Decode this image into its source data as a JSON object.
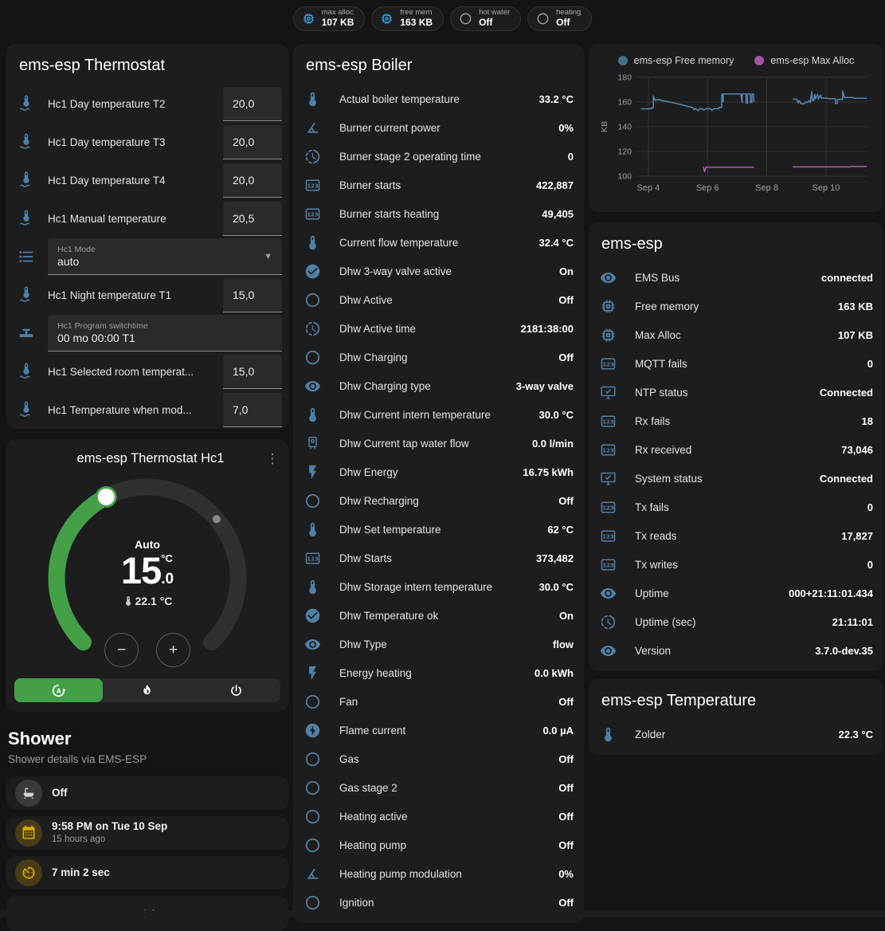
{
  "colors": {
    "accent_green": "#43a047",
    "icon_blue": "#4f81a8",
    "badge_blue": "#2d9ee0",
    "amber": "#dfab00",
    "chart_blue": "#5687b2",
    "chart_purple": "#b05cb0",
    "card_bg": "#1d1d1d",
    "page_bg": "#141414"
  },
  "badges": [
    {
      "label": "max alloc",
      "value": "107 KB",
      "icon": "chip-icon",
      "color": "blue"
    },
    {
      "label": "free mem",
      "value": "163 KB",
      "icon": "chip-icon",
      "color": "blue"
    },
    {
      "label": "hot water",
      "value": "Off",
      "icon": "circle-outline-icon",
      "color": "gray"
    },
    {
      "label": "heating",
      "value": "Off",
      "icon": "circle-outline-icon",
      "color": "gray"
    }
  ],
  "thermostat_card": {
    "title": "ems-esp Thermostat",
    "rows": [
      {
        "type": "number",
        "icon": "thermometer-water-icon",
        "label": "Hc1 Day temperature T2",
        "value": "20,0"
      },
      {
        "type": "number",
        "icon": "thermometer-water-icon",
        "label": "Hc1 Day temperature T3",
        "value": "20,0"
      },
      {
        "type": "number",
        "icon": "thermometer-water-icon",
        "label": "Hc1 Day temperature T4",
        "value": "20,0"
      },
      {
        "type": "number",
        "icon": "thermometer-water-icon",
        "label": "Hc1 Manual temperature",
        "value": "20,5"
      },
      {
        "type": "select",
        "icon": "list-icon",
        "label": "Hc1 Mode",
        "value": "auto"
      },
      {
        "type": "number",
        "icon": "thermometer-water-icon",
        "label": "Hc1 Night temperature T1",
        "value": "15,0"
      },
      {
        "type": "text",
        "icon": "pipe-valve-icon",
        "label": "Hc1 Program switchtime",
        "value": "00 mo 00:00 T1"
      },
      {
        "type": "number",
        "icon": "thermometer-water-icon",
        "label": "Hc1 Selected room temperat...",
        "value": "15,0"
      },
      {
        "type": "number",
        "icon": "thermometer-water-icon",
        "label": "Hc1 Temperature when mod...",
        "value": "7,0"
      }
    ]
  },
  "dial_card": {
    "title": "ems-esp Thermostat Hc1",
    "menu_icon": "dots-vertical-icon",
    "mode_label": "Auto",
    "target_whole": "15",
    "target_fraction": ".0",
    "unit": "°C",
    "current_label": "22.1 °C",
    "min": 5,
    "max": 30,
    "target": 15,
    "current": 22.1,
    "decrease_label": "−",
    "increase_label": "+",
    "modes": [
      {
        "icon": "thermostat-auto-icon",
        "name": "auto",
        "active": true
      },
      {
        "icon": "flame-icon",
        "name": "heat",
        "active": false
      },
      {
        "icon": "power-icon",
        "name": "off",
        "active": false
      }
    ]
  },
  "shower": {
    "title": "Shower",
    "subtitle": "Shower details via EMS-ESP",
    "tiles": [
      {
        "icon": "bathtub-icon",
        "color": "gray",
        "primary": "Off",
        "secondary": ""
      },
      {
        "icon": "calendar-icon",
        "color": "amber",
        "primary": "9:58 PM on Tue 10 Sep",
        "secondary": "15 hours ago"
      },
      {
        "icon": "timer-icon",
        "color": "amber",
        "primary": "7 min 2 sec",
        "secondary": ""
      },
      {
        "icon": "snowflake-alert-icon",
        "color": "blue",
        "primary": "",
        "secondary": ""
      }
    ]
  },
  "boiler_card": {
    "title": "ems-esp Boiler",
    "rows": [
      {
        "icon": "thermometer-icon",
        "label": "Actual boiler temperature",
        "value": "33.2 °C"
      },
      {
        "icon": "angle-icon",
        "label": "Burner current power",
        "value": "0%"
      },
      {
        "icon": "progress-clock-icon",
        "label": "Burner stage 2 operating time",
        "value": "0"
      },
      {
        "icon": "counter-icon",
        "label": "Burner starts",
        "value": "422,887"
      },
      {
        "icon": "counter-icon",
        "label": "Burner starts heating",
        "value": "49,405"
      },
      {
        "icon": "thermometer-icon",
        "label": "Current flow temperature",
        "value": "32.4 °C"
      },
      {
        "icon": "check-circle-icon",
        "label": "Dhw 3-way valve active",
        "value": "On"
      },
      {
        "icon": "circle-outline-icon",
        "label": "Dhw Active",
        "value": "Off"
      },
      {
        "icon": "progress-clock-icon",
        "label": "Dhw Active time",
        "value": "2181:38:00"
      },
      {
        "icon": "circle-outline-icon",
        "label": "Dhw Charging",
        "value": "Off"
      },
      {
        "icon": "eye-icon",
        "label": "Dhw Charging type",
        "value": "3-way valve"
      },
      {
        "icon": "thermometer-icon",
        "label": "Dhw Current intern temperature",
        "value": "30.0 °C"
      },
      {
        "icon": "water-boiler-icon",
        "label": "Dhw Current tap water flow",
        "value": "0.0 l/min"
      },
      {
        "icon": "flash-icon",
        "label": "Dhw Energy",
        "value": "16.75 kWh"
      },
      {
        "icon": "circle-outline-icon",
        "label": "Dhw Recharging",
        "value": "Off"
      },
      {
        "icon": "thermometer-icon",
        "label": "Dhw Set temperature",
        "value": "62 °C"
      },
      {
        "icon": "counter-icon",
        "label": "Dhw Starts",
        "value": "373,482"
      },
      {
        "icon": "thermometer-icon",
        "label": "Dhw Storage intern temperature",
        "value": "30.0 °C"
      },
      {
        "icon": "check-circle-icon",
        "label": "Dhw Temperature ok",
        "value": "On"
      },
      {
        "icon": "eye-icon",
        "label": "Dhw Type",
        "value": "flow"
      },
      {
        "icon": "flash-icon",
        "label": "Energy heating",
        "value": "0.0 kWh"
      },
      {
        "icon": "circle-outline-icon",
        "label": "Fan",
        "value": "Off"
      },
      {
        "icon": "flash-circle-icon",
        "label": "Flame current",
        "value": "0.0 µA"
      },
      {
        "icon": "circle-outline-icon",
        "label": "Gas",
        "value": "Off"
      },
      {
        "icon": "circle-outline-icon",
        "label": "Gas stage 2",
        "value": "Off"
      },
      {
        "icon": "circle-outline-icon",
        "label": "Heating active",
        "value": "Off"
      },
      {
        "icon": "circle-outline-icon",
        "label": "Heating pump",
        "value": "Off"
      },
      {
        "icon": "angle-icon",
        "label": "Heating pump modulation",
        "value": "0%"
      },
      {
        "icon": "circle-outline-icon",
        "label": "Ignition",
        "value": "Off"
      }
    ]
  },
  "chart_data": {
    "type": "line",
    "title": "",
    "xlabel": "",
    "ylabel": "KB",
    "ylim": [
      100,
      180
    ],
    "yticks": [
      100,
      120,
      140,
      160,
      180
    ],
    "xlim": [
      3.6,
      11.4
    ],
    "xticks": [
      {
        "x": 4,
        "label": "Sep 4"
      },
      {
        "x": 6,
        "label": "Sep 6"
      },
      {
        "x": 8,
        "label": "Sep 8"
      },
      {
        "x": 10,
        "label": "Sep 10"
      }
    ],
    "grid": true,
    "legend_position": "top",
    "series": [
      {
        "name": "ems-esp Free memory",
        "color": "#5687b2",
        "dot_color": "#41708f",
        "segments": [
          [
            [
              3.75,
              154.5
            ],
            [
              4.1,
              154.5
            ],
            [
              4.1,
              155.2
            ],
            [
              4.17,
              155.2
            ],
            [
              4.17,
              165
            ],
            [
              4.22,
              161.5
            ],
            [
              4.35,
              162
            ],
            [
              4.5,
              161
            ],
            [
              4.65,
              160.3
            ],
            [
              4.8,
              159.6
            ],
            [
              4.95,
              158.8
            ],
            [
              5.1,
              158
            ],
            [
              5.25,
              157
            ],
            [
              5.4,
              156
            ],
            [
              5.5,
              155.5
            ],
            [
              5.55,
              153.8
            ],
            [
              5.6,
              155
            ],
            [
              5.68,
              153
            ],
            [
              5.73,
              154.6
            ],
            [
              5.82,
              154.6
            ],
            [
              5.87,
              153.6
            ],
            [
              5.95,
              154.6
            ],
            [
              6.1,
              154.6
            ],
            [
              6.15,
              153.2
            ],
            [
              6.2,
              154.6
            ],
            [
              6.38,
              154.6
            ],
            [
              6.38,
              155.6
            ],
            [
              6.48,
              155.6
            ],
            [
              6.48,
              166.5
            ],
            [
              6.53,
              160.2
            ],
            [
              6.53,
              166.5
            ],
            [
              7.12,
              166.5
            ],
            [
              7.17,
              159.6
            ],
            [
              7.17,
              166.5
            ],
            [
              7.3,
              166.5
            ],
            [
              7.3,
              159.2
            ],
            [
              7.35,
              159.2
            ],
            [
              7.35,
              166.5
            ],
            [
              7.45,
              166.5
            ],
            [
              7.45,
              159.6
            ],
            [
              7.5,
              159.6
            ],
            [
              7.5,
              166.5
            ],
            [
              7.55,
              166.5
            ],
            [
              7.57,
              160
            ]
          ],
          [
            [
              8.88,
              162.6
            ],
            [
              9.02,
              162.2
            ],
            [
              9.06,
              159.2
            ],
            [
              9.1,
              161.2
            ],
            [
              9.15,
              158.6
            ],
            [
              9.27,
              158.6
            ],
            [
              9.32,
              160.2
            ],
            [
              9.38,
              159.6
            ],
            [
              9.43,
              161.2
            ],
            [
              9.47,
              159.6
            ],
            [
              9.52,
              168.6
            ],
            [
              9.54,
              161.2
            ],
            [
              9.58,
              161.2
            ],
            [
              9.62,
              166.2
            ],
            [
              9.64,
              162.6
            ],
            [
              9.72,
              166.2
            ],
            [
              9.74,
              162.6
            ],
            [
              9.82,
              165.6
            ],
            [
              9.84,
              163
            ],
            [
              10.05,
              163
            ],
            [
              10.1,
              162.6
            ],
            [
              10.32,
              162.6
            ],
            [
              10.32,
              158.8
            ],
            [
              10.38,
              158.8
            ],
            [
              10.38,
              162.2
            ],
            [
              10.56,
              162.2
            ],
            [
              10.56,
              169
            ],
            [
              10.62,
              163.6
            ],
            [
              10.92,
              163.6
            ],
            [
              10.97,
              163
            ],
            [
              11.38,
              163
            ]
          ]
        ]
      },
      {
        "name": "ems-esp Max Alloc",
        "color": "#b05cb0",
        "dot_color": "#a055a0",
        "segments": [
          [
            [
              5.86,
              107.5
            ],
            [
              5.9,
              103.6
            ],
            [
              5.94,
              107.3
            ],
            [
              7.57,
              107.3
            ]
          ],
          [
            [
              8.88,
              107.5
            ],
            [
              10.8,
              107.5
            ],
            [
              10.85,
              107.8
            ],
            [
              11.38,
              107.8
            ]
          ]
        ]
      }
    ]
  },
  "esp_card": {
    "title": "ems-esp",
    "rows": [
      {
        "icon": "eye-icon",
        "label": "EMS Bus",
        "value": "connected"
      },
      {
        "icon": "chip-icon",
        "label": "Free memory",
        "value": "163 KB"
      },
      {
        "icon": "chip-icon",
        "label": "Max Alloc",
        "value": "107 KB"
      },
      {
        "icon": "counter-icon",
        "label": "MQTT fails",
        "value": "0"
      },
      {
        "icon": "monitor-check-icon",
        "label": "NTP status",
        "value": "Connected"
      },
      {
        "icon": "counter-icon",
        "label": "Rx fails",
        "value": "18"
      },
      {
        "icon": "counter-icon",
        "label": "Rx received",
        "value": "73,046"
      },
      {
        "icon": "monitor-check-icon",
        "label": "System status",
        "value": "Connected"
      },
      {
        "icon": "counter-icon",
        "label": "Tx fails",
        "value": "0"
      },
      {
        "icon": "counter-icon",
        "label": "Tx reads",
        "value": "17,827"
      },
      {
        "icon": "counter-icon",
        "label": "Tx writes",
        "value": "0"
      },
      {
        "icon": "eye-icon",
        "label": "Uptime",
        "value": "000+21:11:01.434"
      },
      {
        "icon": "progress-clock-icon",
        "label": "Uptime (sec)",
        "value": "21:11:01"
      },
      {
        "icon": "eye-icon",
        "label": "Version",
        "value": "3.7.0-dev.35"
      }
    ]
  },
  "temp_card": {
    "title": "ems-esp Temperature",
    "rows": [
      {
        "icon": "thermometer-icon",
        "label": "Zolder",
        "value": "22.3 °C"
      }
    ]
  }
}
